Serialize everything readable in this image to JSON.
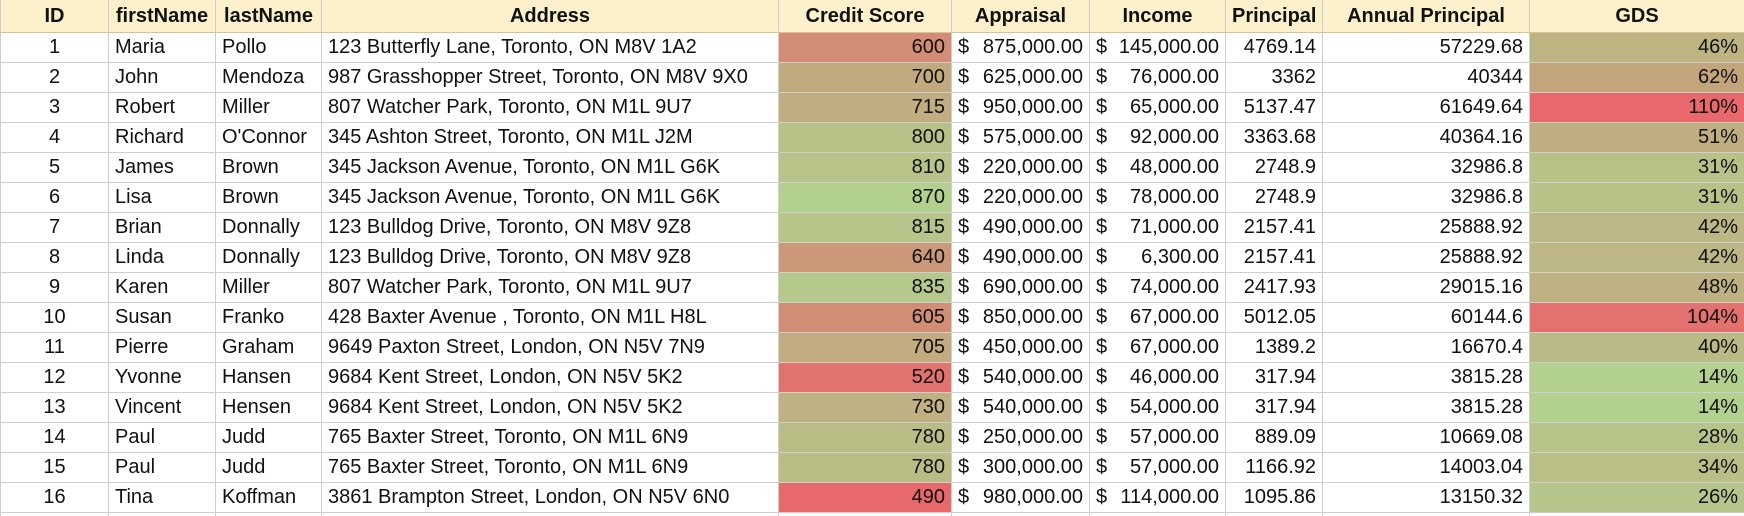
{
  "columns": [
    "ID",
    "firstName",
    "lastName",
    "Address",
    "Credit Score",
    "Appraisal",
    "Income",
    "Principal",
    "Annual Principal",
    "GDS"
  ],
  "currency_symbol": "$",
  "colors": {
    "header_bg": "#fdf1cc",
    "scale_low": "#e8696b",
    "scale_mid": "#c3a57c",
    "scale_high": "#b2d18f"
  },
  "rows": [
    {
      "id": "1",
      "first": "Maria",
      "last": "Pollo",
      "address": "123 Butterfly Lane, Toronto, ON M8V 1A2",
      "credit": "600",
      "appraisal": "875,000.00",
      "income": "145,000.00",
      "principal": "4769.14",
      "annual": "57229.68",
      "gds": "46%"
    },
    {
      "id": "2",
      "first": "John",
      "last": "Mendoza",
      "address": "987 Grasshopper Street, Toronto, ON M8V 9X0",
      "credit": "700",
      "appraisal": "625,000.00",
      "income": "76,000.00",
      "principal": "3362",
      "annual": "40344",
      "gds": "62%"
    },
    {
      "id": "3",
      "first": "Robert",
      "last": "Miller",
      "address": "807 Watcher Park, Toronto, ON  M1L 9U7",
      "credit": "715",
      "appraisal": "950,000.00",
      "income": "65,000.00",
      "principal": "5137.47",
      "annual": "61649.64",
      "gds": "110%"
    },
    {
      "id": "4",
      "first": "Richard",
      "last": "O'Connor",
      "address": "345 Ashton Street, Toronto, ON  M1L J2M",
      "credit": "800",
      "appraisal": "575,000.00",
      "income": "92,000.00",
      "principal": "3363.68",
      "annual": "40364.16",
      "gds": "51%"
    },
    {
      "id": "5",
      "first": "James",
      "last": "Brown",
      "address": "345 Jackson Avenue, Toronto, ON  M1L G6K",
      "credit": "810",
      "appraisal": "220,000.00",
      "income": "48,000.00",
      "principal": "2748.9",
      "annual": "32986.8",
      "gds": "31%"
    },
    {
      "id": "6",
      "first": "Lisa",
      "last": "Brown",
      "address": "345 Jackson Avenue, Toronto, ON  M1L G6K",
      "credit": "870",
      "appraisal": "220,000.00",
      "income": "78,000.00",
      "principal": "2748.9",
      "annual": "32986.8",
      "gds": "31%"
    },
    {
      "id": "7",
      "first": "Brian",
      "last": "Donnally",
      "address": "123 Bulldog Drive, Toronto, ON  M8V 9Z8",
      "credit": "815",
      "appraisal": "490,000.00",
      "income": "71,000.00",
      "principal": "2157.41",
      "annual": "25888.92",
      "gds": "42%"
    },
    {
      "id": "8",
      "first": "Linda",
      "last": "Donnally",
      "address": "123 Bulldog Drive, Toronto, ON  M8V 9Z8",
      "credit": "640",
      "appraisal": "490,000.00",
      "income": "6,300.00",
      "principal": "2157.41",
      "annual": "25888.92",
      "gds": "42%"
    },
    {
      "id": "9",
      "first": "Karen",
      "last": "Miller",
      "address": "807 Watcher Park, Toronto, ON  M1L 9U7",
      "credit": "835",
      "appraisal": "690,000.00",
      "income": "74,000.00",
      "principal": "2417.93",
      "annual": "29015.16",
      "gds": "48%"
    },
    {
      "id": "10",
      "first": "Susan",
      "last": "Franko",
      "address": "428 Baxter Avenue , Toronto, ON  M1L H8L",
      "credit": "605",
      "appraisal": "850,000.00",
      "income": "67,000.00",
      "principal": "5012.05",
      "annual": "60144.6",
      "gds": "104%"
    },
    {
      "id": "11",
      "first": "Pierre",
      "last": "Graham",
      "address": "9649 Paxton Street, London, ON  N5V 7N9",
      "credit": "705",
      "appraisal": "450,000.00",
      "income": "67,000.00",
      "principal": "1389.2",
      "annual": "16670.4",
      "gds": "40%"
    },
    {
      "id": "12",
      "first": "Yvonne",
      "last": "Hansen",
      "address": "9684 Kent Street, London, ON  N5V 5K2",
      "credit": "520",
      "appraisal": "540,000.00",
      "income": "46,000.00",
      "principal": "317.94",
      "annual": "3815.28",
      "gds": "14%"
    },
    {
      "id": "13",
      "first": "Vincent",
      "last": "Hensen",
      "address": "9684 Kent Street, London, ON  N5V 5K2",
      "credit": "730",
      "appraisal": "540,000.00",
      "income": "54,000.00",
      "principal": "317.94",
      "annual": "3815.28",
      "gds": "14%"
    },
    {
      "id": "14",
      "first": "Paul",
      "last": "Judd",
      "address": "765 Baxter Street, Toronto, ON  M1L 6N9",
      "credit": "780",
      "appraisal": "250,000.00",
      "income": "57,000.00",
      "principal": "889.09",
      "annual": "10669.08",
      "gds": "28%"
    },
    {
      "id": "15",
      "first": "Paul",
      "last": "Judd",
      "address": "765 Baxter Street, Toronto, ON  M1L 6N9",
      "credit": "780",
      "appraisal": "300,000.00",
      "income": "57,000.00",
      "principal": "1166.92",
      "annual": "14003.04",
      "gds": "34%"
    },
    {
      "id": "16",
      "first": "Tina",
      "last": "Koffman",
      "address": "3861 Brampton Street, London, ON  N5V 6N0",
      "credit": "490",
      "appraisal": "980,000.00",
      "income": "114,000.00",
      "principal": "1095.86",
      "annual": "13150.32",
      "gds": "26%"
    }
  ]
}
